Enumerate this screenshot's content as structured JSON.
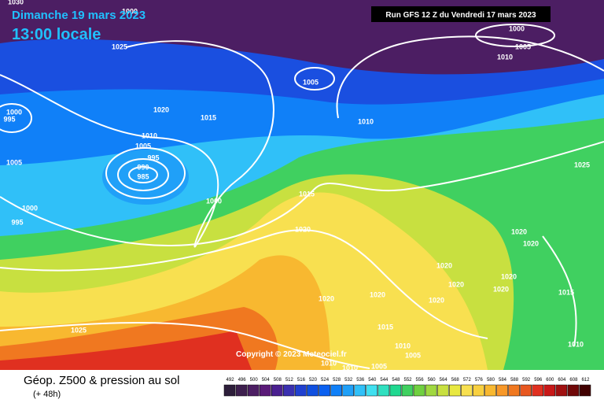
{
  "header": {
    "date": "Dimanche 19 mars 2023",
    "time": "13:00 locale",
    "run": "Run GFS 12 Z du Vendredi 17 mars 2023"
  },
  "copyright": "Copyright © 2023 Meteociel.fr",
  "footer": {
    "title": "Géop. Z500 & pression au sol",
    "lead": "(+ 48h)"
  },
  "legend": {
    "levels": [
      492,
      496,
      500,
      504,
      508,
      512,
      516,
      520,
      524,
      528,
      532,
      536,
      540,
      544,
      548,
      552,
      556,
      560,
      564,
      568,
      572,
      576,
      580,
      584,
      588,
      592,
      596,
      600,
      604,
      608,
      612
    ],
    "colors": [
      "#2d1e3a",
      "#3d1f4e",
      "#4c1e63",
      "#5a1a78",
      "#4a2090",
      "#3a30b0",
      "#2040d0",
      "#1050e0",
      "#0a60f0",
      "#1080f8",
      "#20a0f8",
      "#30c0f8",
      "#40e0f0",
      "#30e0c0",
      "#20d890",
      "#40d060",
      "#70d040",
      "#a0d840",
      "#c8e040",
      "#e8e840",
      "#f8e050",
      "#f8d040",
      "#f8b830",
      "#f89828",
      "#f07820",
      "#e85820",
      "#e03020",
      "#c81818",
      "#a01010",
      "#700808",
      "#400000"
    ]
  },
  "isobar_labels": [
    "1030",
    "1000",
    "1025",
    "1020",
    "1015",
    "1010",
    "1005",
    "995",
    "990",
    "985",
    "1000",
    "1005",
    "1010",
    "1000",
    "1005",
    "1010",
    "1000",
    "995",
    "1005",
    "1000",
    "995",
    "1015",
    "1020",
    "1025",
    "1020",
    "1020",
    "1020",
    "1020",
    "1020",
    "1020",
    "1020",
    "1020",
    "1020",
    "1015",
    "1015",
    "1010",
    "1005",
    "1010",
    "1025",
    "1010",
    "1010",
    "1005"
  ]
}
